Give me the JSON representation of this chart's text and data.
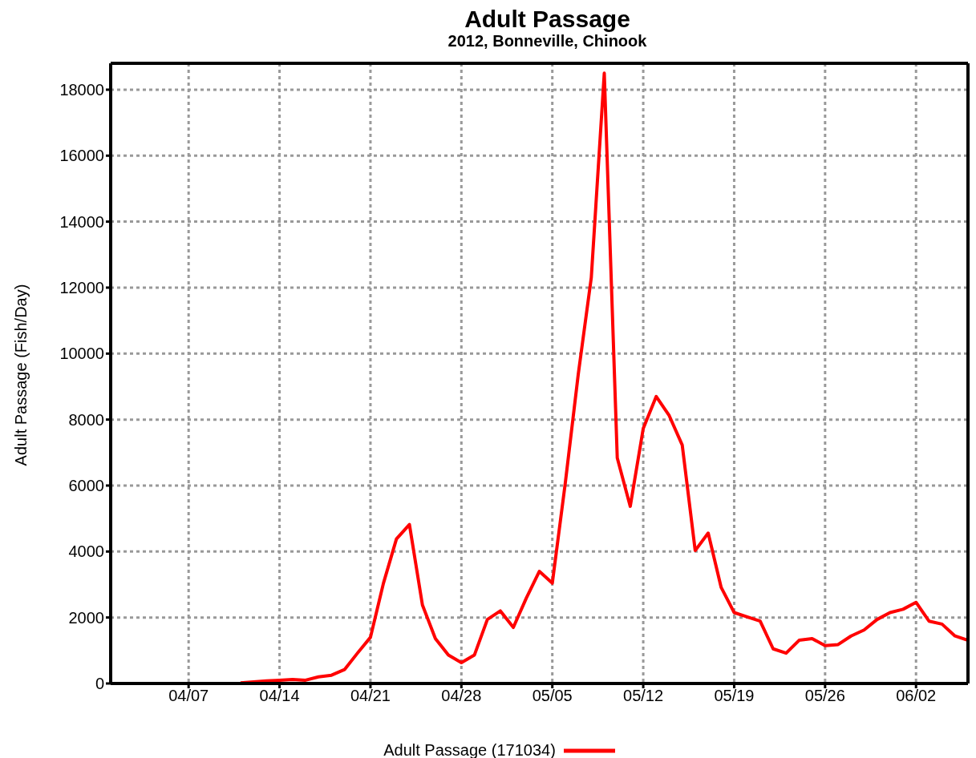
{
  "chart_data": {
    "type": "line",
    "title": "Adult Passage",
    "subtitle": "2012, Bonneville, Chinook",
    "ylabel": "Adult Passage (Fish/Day)",
    "x": [
      "--04-11",
      "--04-12",
      "--04-13",
      "--04-14",
      "--04-15",
      "--04-16",
      "--04-17",
      "--04-18",
      "--04-19",
      "--04-20",
      "--04-21",
      "--04-22",
      "--04-23",
      "--04-24",
      "--04-25",
      "--04-26",
      "--04-27",
      "--04-28",
      "--04-29",
      "--04-30",
      "--05-01",
      "--05-02",
      "--05-03",
      "--05-04",
      "--05-05",
      "--05-06",
      "--05-07",
      "--05-08",
      "--05-09",
      "--05-10",
      "--05-11",
      "--05-12",
      "--05-13",
      "--05-14",
      "--05-15",
      "--05-16",
      "--05-17",
      "--05-18",
      "--05-19",
      "--05-20",
      "--05-21",
      "--05-22",
      "--05-23",
      "--05-24",
      "--05-25",
      "--05-26",
      "--05-27",
      "--05-28",
      "--05-29",
      "--05-30",
      "--05-31",
      "--06-01",
      "--06-02",
      "--06-03",
      "--06-04",
      "--06-05",
      "--06-06"
    ],
    "series": [
      {
        "name": "Adult Passage (171034)",
        "color": "#ff0000",
        "values": [
          20,
          50,
          80,
          100,
          120,
          100,
          200,
          250,
          420,
          920,
          1400,
          3040,
          4380,
          4820,
          2380,
          1360,
          860,
          630,
          860,
          1940,
          2200,
          1700,
          2590,
          3400,
          3040,
          6080,
          9380,
          12300,
          18500,
          6840,
          5370,
          7730,
          8700,
          8120,
          7230,
          4030,
          4560,
          2910,
          2150,
          2020,
          1890,
          1050,
          920,
          1310,
          1360,
          1150,
          1180,
          1440,
          1620,
          1940,
          2150,
          2250,
          2460,
          1890,
          1800,
          1440,
          1310
        ]
      }
    ],
    "xlim": [
      "--04-01",
      "--06-06"
    ],
    "xticks": [
      {
        "value": "--04-07",
        "label": "04/07"
      },
      {
        "value": "--04-14",
        "label": "04/14"
      },
      {
        "value": "--04-21",
        "label": "04/21"
      },
      {
        "value": "--04-28",
        "label": "04/28"
      },
      {
        "value": "--05-05",
        "label": "05/05"
      },
      {
        "value": "--05-12",
        "label": "05/12"
      },
      {
        "value": "--05-19",
        "label": "05/19"
      },
      {
        "value": "--05-26",
        "label": "05/26"
      },
      {
        "value": "--06-02",
        "label": "06/02"
      }
    ],
    "ylim": [
      0,
      18800
    ],
    "yticks": [
      0,
      2000,
      4000,
      6000,
      8000,
      10000,
      12000,
      14000,
      16000,
      18000
    ],
    "grid": true,
    "legend": "bottom",
    "marker": "none",
    "line_style": "solid"
  }
}
